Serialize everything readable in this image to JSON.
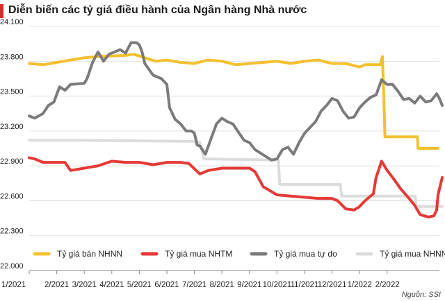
{
  "title": "Diễn biến các tỷ giá điều hành của Ngân hàng Nhà nước",
  "source": "Nguồn: SSI",
  "chart_data": {
    "type": "line",
    "title": "Diễn biến các tỷ giá điều hành của Ngân hàng Nhà nước",
    "xlabel": "",
    "ylabel": "",
    "x_ticks": [
      "1/2021",
      "2/2021",
      "3/2021",
      "4/2021",
      "5/2021",
      "6/2021",
      "7/2021",
      "8/2021",
      "9/2021",
      "10/2021",
      "11/2021",
      "12/2021",
      "1/2022",
      "2/2022"
    ],
    "xlim": [
      0,
      14.9
    ],
    "y_ticks": [
      22000,
      22300,
      22600,
      22900,
      23200,
      23500,
      23800,
      24100
    ],
    "y_tick_labels": [
      "22.000",
      "22.300",
      "22.600",
      "22.900",
      "23.200",
      "23.500",
      "23.800",
      "24.100"
    ],
    "ylim": [
      22000,
      24100
    ],
    "grid": true,
    "legend_position": "bottom",
    "series": [
      {
        "name": "Tỷ giá bán NHNN",
        "color": "#f4c030",
        "points": [
          [
            0,
            23780
          ],
          [
            0.5,
            23770
          ],
          [
            1,
            23790
          ],
          [
            1.5,
            23810
          ],
          [
            2,
            23830
          ],
          [
            2.5,
            23840
          ],
          [
            3,
            23845
          ],
          [
            3.5,
            23850
          ],
          [
            3.8,
            23860
          ],
          [
            4.2,
            23830
          ],
          [
            4.6,
            23800
          ],
          [
            5,
            23810
          ],
          [
            5.5,
            23790
          ],
          [
            6,
            23780
          ],
          [
            6.5,
            23810
          ],
          [
            7,
            23800
          ],
          [
            7.5,
            23770
          ],
          [
            8,
            23780
          ],
          [
            8.5,
            23790
          ],
          [
            9,
            23800
          ],
          [
            9.5,
            23780
          ],
          [
            10,
            23800
          ],
          [
            10.5,
            23810
          ],
          [
            11,
            23780
          ],
          [
            11.5,
            23780
          ],
          [
            12,
            23750
          ],
          [
            12.2,
            23770
          ],
          [
            12.75,
            23770
          ],
          [
            12.83,
            23840
          ],
          [
            12.88,
            23500
          ],
          [
            12.92,
            23150
          ],
          [
            13.5,
            23150
          ],
          [
            14.1,
            23150
          ],
          [
            14.12,
            23050
          ],
          [
            14.85,
            23050
          ]
        ]
      },
      {
        "name": "Tỷ giá mua NHTM",
        "color": "#e53935",
        "points": [
          [
            0,
            22970
          ],
          [
            0.2,
            22960
          ],
          [
            0.5,
            22930
          ],
          [
            1,
            22930
          ],
          [
            1.3,
            22930
          ],
          [
            1.5,
            22860
          ],
          [
            2,
            22880
          ],
          [
            2.5,
            22900
          ],
          [
            3,
            22940
          ],
          [
            3.5,
            22930
          ],
          [
            4,
            22930
          ],
          [
            4.5,
            22910
          ],
          [
            5,
            22930
          ],
          [
            5.5,
            22930
          ],
          [
            5.8,
            22920
          ],
          [
            6.2,
            22830
          ],
          [
            6.5,
            22860
          ],
          [
            7,
            22880
          ],
          [
            7.5,
            22880
          ],
          [
            8,
            22880
          ],
          [
            8.2,
            22850
          ],
          [
            8.5,
            22720
          ],
          [
            9,
            22650
          ],
          [
            9.5,
            22640
          ],
          [
            10,
            22630
          ],
          [
            10.5,
            22620
          ],
          [
            11,
            22620
          ],
          [
            11.2,
            22600
          ],
          [
            11.5,
            22530
          ],
          [
            11.8,
            22520
          ],
          [
            12,
            22550
          ],
          [
            12.2,
            22600
          ],
          [
            12.5,
            22660
          ],
          [
            12.6,
            22800
          ],
          [
            12.8,
            22940
          ],
          [
            13,
            22860
          ],
          [
            13.2,
            22800
          ],
          [
            13.5,
            22700
          ],
          [
            13.8,
            22620
          ],
          [
            14,
            22560
          ],
          [
            14.2,
            22480
          ],
          [
            14.5,
            22460
          ],
          [
            14.7,
            22470
          ],
          [
            14.8,
            22520
          ],
          [
            14.85,
            22650
          ],
          [
            14.9,
            22700
          ],
          [
            15,
            22800
          ]
        ]
      },
      {
        "name": "Tỷ giá mua tự do",
        "color": "#7b7b7b",
        "points": [
          [
            0,
            23330
          ],
          [
            0.2,
            23310
          ],
          [
            0.5,
            23350
          ],
          [
            0.7,
            23420
          ],
          [
            0.9,
            23450
          ],
          [
            1.1,
            23580
          ],
          [
            1.3,
            23550
          ],
          [
            1.5,
            23600
          ],
          [
            2,
            23610
          ],
          [
            2.1,
            23650
          ],
          [
            2.3,
            23790
          ],
          [
            2.5,
            23880
          ],
          [
            2.7,
            23800
          ],
          [
            2.9,
            23860
          ],
          [
            3.1,
            23880
          ],
          [
            3.3,
            23900
          ],
          [
            3.5,
            23870
          ],
          [
            3.7,
            23960
          ],
          [
            3.9,
            23960
          ],
          [
            4,
            23940
          ],
          [
            4.1,
            23880
          ],
          [
            4.2,
            23780
          ],
          [
            4.5,
            23680
          ],
          [
            4.8,
            23650
          ],
          [
            5,
            23600
          ],
          [
            5.1,
            23400
          ],
          [
            5.3,
            23300
          ],
          [
            5.5,
            23260
          ],
          [
            5.7,
            23200
          ],
          [
            5.9,
            23200
          ],
          [
            6,
            23180
          ],
          [
            6.1,
            23080
          ],
          [
            6.2,
            23070
          ],
          [
            6.4,
            23000
          ],
          [
            6.6,
            23130
          ],
          [
            6.8,
            23260
          ],
          [
            7,
            23310
          ],
          [
            7.2,
            23280
          ],
          [
            7.4,
            23260
          ],
          [
            7.6,
            23190
          ],
          [
            7.8,
            23120
          ],
          [
            8,
            23100
          ],
          [
            8.2,
            23040
          ],
          [
            8.4,
            23010
          ],
          [
            8.6,
            22980
          ],
          [
            8.8,
            22950
          ],
          [
            9,
            22960
          ],
          [
            9.2,
            23040
          ],
          [
            9.4,
            23060
          ],
          [
            9.6,
            23000
          ],
          [
            9.8,
            23100
          ],
          [
            10,
            23180
          ],
          [
            10.2,
            23230
          ],
          [
            10.4,
            23280
          ],
          [
            10.6,
            23370
          ],
          [
            10.8,
            23420
          ],
          [
            11,
            23480
          ],
          [
            11.2,
            23460
          ],
          [
            11.4,
            23370
          ],
          [
            11.6,
            23310
          ],
          [
            11.8,
            23320
          ],
          [
            12,
            23400
          ],
          [
            12.2,
            23450
          ],
          [
            12.4,
            23490
          ],
          [
            12.6,
            23510
          ],
          [
            12.8,
            23640
          ],
          [
            13,
            23600
          ],
          [
            13.2,
            23600
          ],
          [
            13.4,
            23540
          ],
          [
            13.6,
            23470
          ],
          [
            13.8,
            23480
          ],
          [
            14,
            23440
          ],
          [
            14.2,
            23500
          ],
          [
            14.4,
            23450
          ],
          [
            14.6,
            23460
          ],
          [
            14.8,
            23520
          ],
          [
            14.9,
            23480
          ],
          [
            15,
            23420
          ]
        ]
      },
      {
        "name": "Tỷ giá mua NHNN",
        "color": "#dcdcdc",
        "points": [
          [
            0,
            23120
          ],
          [
            2,
            23120
          ],
          [
            4,
            23115
          ],
          [
            6,
            23110
          ],
          [
            6.2,
            23100
          ],
          [
            6.35,
            22960
          ],
          [
            9.05,
            22950
          ],
          [
            9.1,
            22740
          ],
          [
            11.3,
            22740
          ],
          [
            11.35,
            22640
          ],
          [
            12.85,
            22640
          ],
          [
            12.9,
            22640
          ],
          [
            14.02,
            22640
          ],
          [
            14.05,
            22550
          ],
          [
            15,
            22550
          ]
        ]
      }
    ]
  }
}
